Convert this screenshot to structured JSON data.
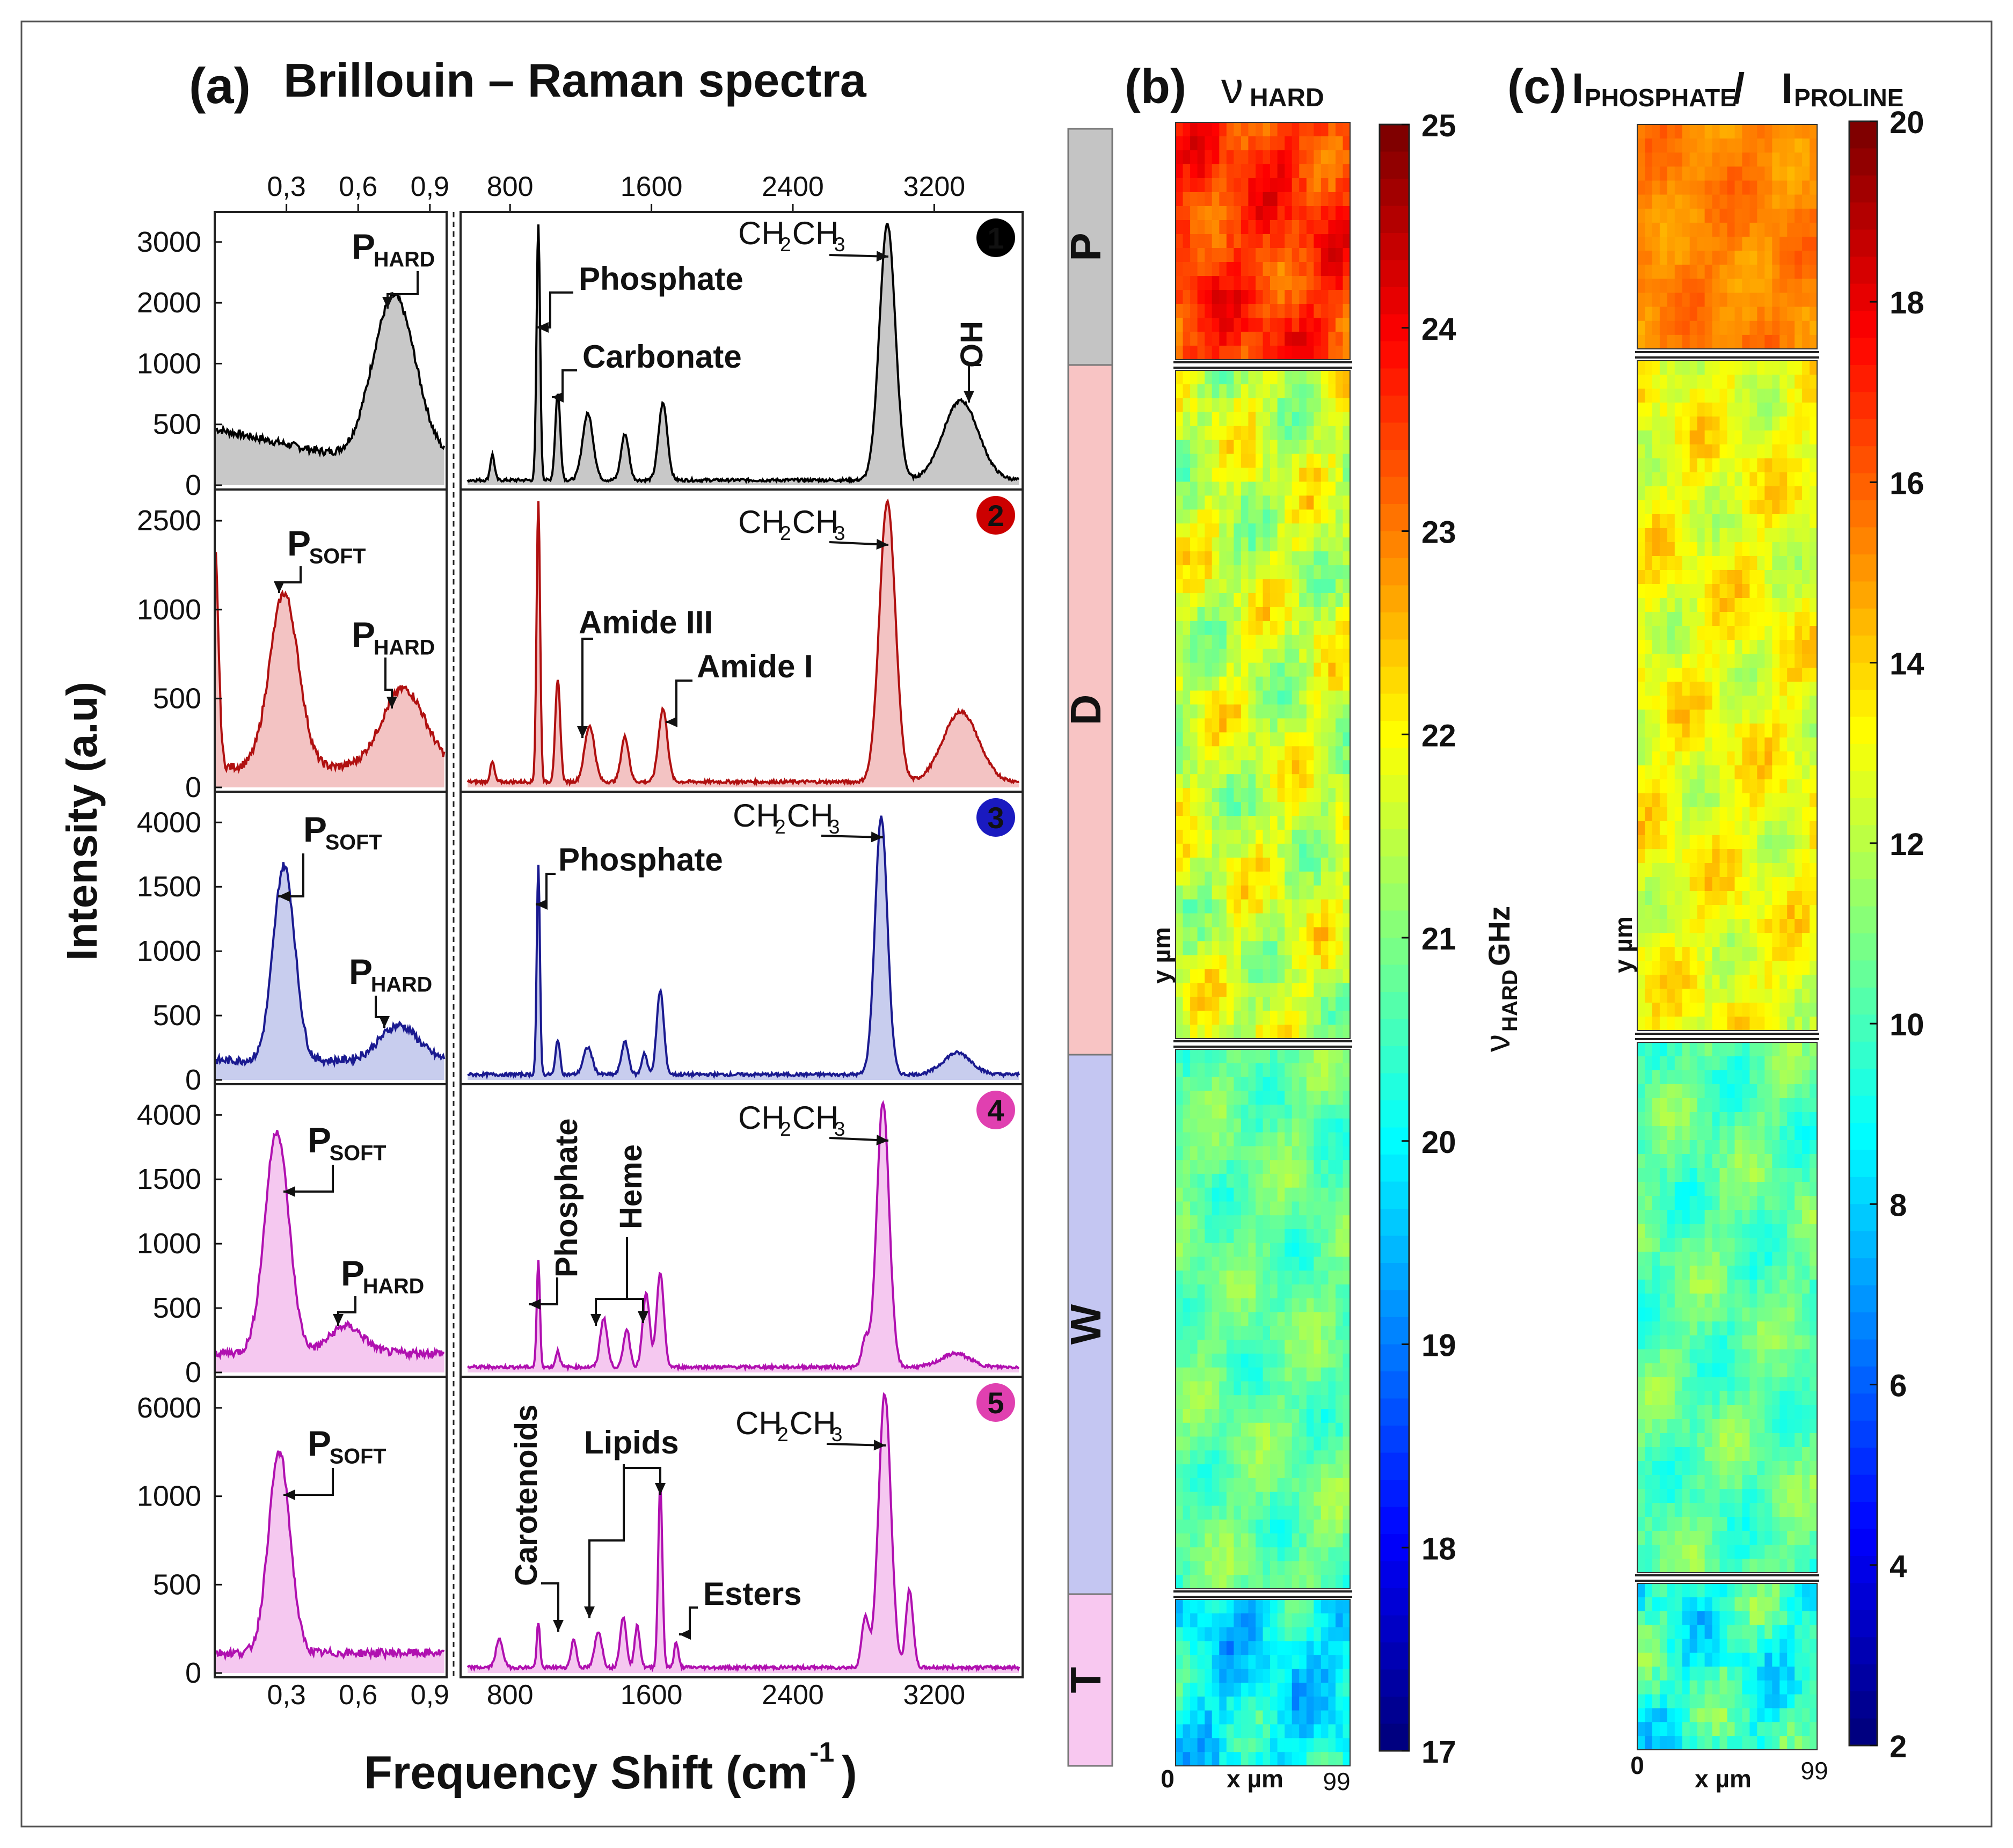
{
  "chart_data": {
    "type": "figure",
    "panel_a": {
      "label": "(a)",
      "title": "Brillouin – Raman spectra",
      "ylabel": "Intensity (a.u)",
      "xlabel_main": "Frequency Shift (cm",
      "xlabel_sup": "-1",
      "xlabel_close": ")",
      "brillouin_ticks": [
        "0,3",
        "0,6",
        "0,9"
      ],
      "raman_ticks": [
        "800",
        "1600",
        "2400",
        "3200"
      ],
      "spectra": [
        {
          "badge": "1",
          "color": "#000000",
          "fill": "#c8c8c8",
          "badge_color": "#000000",
          "yticks": [
            "0",
            "500",
            "1000",
            "2000",
            "3000"
          ],
          "brillouin_peaks": [
            {
              "x": 0.75,
              "h": 0.64,
              "w": 0.09
            }
          ],
          "raman_peaks": [
            {
              "x": 700,
              "h": 0.1,
              "w": 12
            },
            {
              "x": 960,
              "h": 1.0,
              "w": 10
            },
            {
              "x": 1070,
              "h": 0.34,
              "w": 14
            },
            {
              "x": 1240,
              "h": 0.26,
              "w": 30
            },
            {
              "x": 1450,
              "h": 0.18,
              "w": 22
            },
            {
              "x": 1665,
              "h": 0.3,
              "w": 25
            },
            {
              "x": 2935,
              "h": 1.0,
              "w": 45
            },
            {
              "x": 3350,
              "h": 0.31,
              "w": 100
            }
          ],
          "annotations": [
            {
              "text": "P",
              "sub": "HARD"
            },
            {
              "text": "Phosphate"
            },
            {
              "text": "Carbonate"
            },
            {
              "text": "CH",
              "sub": "2",
              "text2": "CH",
              "sub2": "3"
            },
            {
              "text": "OH"
            }
          ]
        },
        {
          "badge": "2",
          "color": "#b01010",
          "fill": "#f3c3c3",
          "badge_color": "#cc0000",
          "yticks": [
            "0",
            "500",
            "1000",
            "2500"
          ],
          "brillouin_peaks": [
            {
              "x": 0.0,
              "h": 0.8,
              "w": 0.015
            },
            {
              "x": 0.29,
              "h": 0.62,
              "w": 0.06
            },
            {
              "x": 0.79,
              "h": 0.28,
              "w": 0.09
            }
          ],
          "raman_peaks": [
            {
              "x": 700,
              "h": 0.07,
              "w": 12
            },
            {
              "x": 960,
              "h": 1.0,
              "w": 10
            },
            {
              "x": 1070,
              "h": 0.36,
              "w": 14
            },
            {
              "x": 1250,
              "h": 0.2,
              "w": 28
            },
            {
              "x": 1450,
              "h": 0.16,
              "w": 22
            },
            {
              "x": 1665,
              "h": 0.26,
              "w": 25
            },
            {
              "x": 2935,
              "h": 1.0,
              "w": 45
            },
            {
              "x": 3350,
              "h": 0.25,
              "w": 100
            }
          ],
          "annotations": [
            {
              "text": "P",
              "sub": "SOFT"
            },
            {
              "text": "P",
              "sub": "HARD"
            },
            {
              "text": "Amide III"
            },
            {
              "text": "Amide I"
            },
            {
              "text": "CH",
              "sub": "2",
              "text2": "CH",
              "sub2": "3"
            }
          ]
        },
        {
          "badge": "3",
          "color": "#1a1a90",
          "fill": "#c8cdee",
          "badge_color": "#1a1ac0",
          "yticks": [
            "0",
            "500",
            "1000",
            "1500",
            "4000"
          ],
          "brillouin_peaks": [
            {
              "x": 0.29,
              "h": 0.72,
              "w": 0.045
            },
            {
              "x": 0.77,
              "h": 0.13,
              "w": 0.08
            }
          ],
          "raman_peaks": [
            {
              "x": 960,
              "h": 0.77,
              "w": 9
            },
            {
              "x": 1070,
              "h": 0.13,
              "w": 12
            },
            {
              "x": 1240,
              "h": 0.1,
              "w": 25
            },
            {
              "x": 1450,
              "h": 0.12,
              "w": 20
            },
            {
              "x": 1560,
              "h": 0.08,
              "w": 15
            },
            {
              "x": 1650,
              "h": 0.31,
              "w": 20
            },
            {
              "x": 2900,
              "h": 0.95,
              "w": 35
            },
            {
              "x": 3330,
              "h": 0.08,
              "w": 80
            }
          ],
          "annotations": [
            {
              "text": "P",
              "sub": "SOFT"
            },
            {
              "text": "P",
              "sub": "HARD"
            },
            {
              "text": "Phosphate"
            },
            {
              "text": "CH",
              "sub": "2",
              "text2": "CH",
              "sub2": "3"
            }
          ]
        },
        {
          "badge": "4",
          "color": "#b010b0",
          "fill": "#f5c8f0",
          "badge_color": "#e040b0",
          "yticks": [
            "0",
            "500",
            "1000",
            "1500",
            "4000"
          ],
          "brillouin_peaks": [
            {
              "x": 0.26,
              "h": 0.82,
              "w": 0.05
            },
            {
              "x": 0.55,
              "h": 0.1,
              "w": 0.07
            }
          ],
          "raman_peaks": [
            {
              "x": 960,
              "h": 0.39,
              "w": 9
            },
            {
              "x": 1070,
              "h": 0.06,
              "w": 12
            },
            {
              "x": 1330,
              "h": 0.18,
              "w": 20
            },
            {
              "x": 1460,
              "h": 0.14,
              "w": 18
            },
            {
              "x": 1570,
              "h": 0.27,
              "w": 20
            },
            {
              "x": 1650,
              "h": 0.35,
              "w": 20
            },
            {
              "x": 2810,
              "h": 0.1,
              "w": 20
            },
            {
              "x": 2910,
              "h": 0.98,
              "w": 35
            },
            {
              "x": 3320,
              "h": 0.05,
              "w": 80
            }
          ],
          "annotations": [
            {
              "text": "P",
              "sub": "SOFT"
            },
            {
              "text": "P",
              "sub": "HARD"
            },
            {
              "text": "Phosphate"
            },
            {
              "text": "Heme"
            },
            {
              "text": "CH",
              "sub": "2",
              "text2": "CH",
              "sub2": "3"
            }
          ]
        },
        {
          "badge": "5",
          "color": "#b010b0",
          "fill": "#f5c8f0",
          "badge_color": "#e040b0",
          "yticks": [
            "0",
            "500",
            "1000",
            "6000"
          ],
          "brillouin_peaks": [
            {
              "x": 0.27,
              "h": 0.72,
              "w": 0.045
            }
          ],
          "raman_peaks": [
            {
              "x": 740,
              "h": 0.1,
              "w": 20
            },
            {
              "x": 960,
              "h": 0.16,
              "w": 9
            },
            {
              "x": 1160,
              "h": 0.1,
              "w": 15
            },
            {
              "x": 1300,
              "h": 0.13,
              "w": 20
            },
            {
              "x": 1440,
              "h": 0.18,
              "w": 18
            },
            {
              "x": 1520,
              "h": 0.15,
              "w": 15
            },
            {
              "x": 1650,
              "h": 0.66,
              "w": 12
            },
            {
              "x": 1740,
              "h": 0.09,
              "w": 12
            },
            {
              "x": 2810,
              "h": 0.18,
              "w": 20
            },
            {
              "x": 2920,
              "h": 0.98,
              "w": 35
            },
            {
              "x": 3060,
              "h": 0.28,
              "w": 20
            }
          ],
          "annotations": [
            {
              "text": "P",
              "sub": "SOFT"
            },
            {
              "text": "Carotenoids"
            },
            {
              "text": "Lipids"
            },
            {
              "text": "Esters"
            },
            {
              "text": "CH",
              "sub": "2",
              "text2": "CH",
              "sub2": "3"
            }
          ]
        }
      ]
    },
    "layer_bar": {
      "labels": [
        "P",
        "D",
        "W",
        "T"
      ],
      "colors": [
        "#c4c4c4",
        "#f8c4c4",
        "#c4c6f2",
        "#f8c8f0"
      ]
    },
    "panel_b": {
      "label": "(b)",
      "title": "ν",
      "title_sub": "HARD",
      "colorbar_ticks": [
        "25",
        "24",
        "23",
        "22",
        "21",
        "20",
        "19",
        "18",
        "17"
      ],
      "colorbar_range": [
        17,
        25
      ],
      "colorbar_label": "ν",
      "colorbar_label_sub": "HARD",
      "colorbar_label_unit": " GHz",
      "x_start": "0",
      "x_label": "x µm",
      "x_end": "99",
      "y_label": "y µm",
      "sections": [
        {
          "name": "P",
          "mean": 23.6,
          "spread": 0.7
        },
        {
          "name": "D",
          "mean": 21.6,
          "spread": 0.9
        },
        {
          "name": "W",
          "mean": 20.8,
          "spread": 0.6
        },
        {
          "name": "T",
          "mean": 19.9,
          "spread": 0.9
        }
      ]
    },
    "panel_c": {
      "label": "(c)",
      "title_a": "I",
      "title_a_sub": "PHOSPHATE",
      "title_sep": " / ",
      "title_b": "I",
      "title_b_sub": "PROLINE",
      "colorbar_ticks": [
        "20",
        "18",
        "16",
        "14",
        "12",
        "10",
        "8",
        "6",
        "4",
        "2"
      ],
      "colorbar_range": [
        2,
        20
      ],
      "x_start": "0",
      "x_label": "x µm",
      "x_end": "99",
      "y_label": "y µm",
      "sections": [
        {
          "name": "P",
          "mean": 15.4,
          "spread": 0.8
        },
        {
          "name": "D",
          "mean": 13.0,
          "spread": 1.5
        },
        {
          "name": "W",
          "mean": 10.4,
          "spread": 1.4
        },
        {
          "name": "T",
          "mean": 9.5,
          "spread": 2.2
        }
      ]
    },
    "colors": {
      "jet_low": "#0000ff",
      "jet_high": "#ff0000"
    }
  }
}
